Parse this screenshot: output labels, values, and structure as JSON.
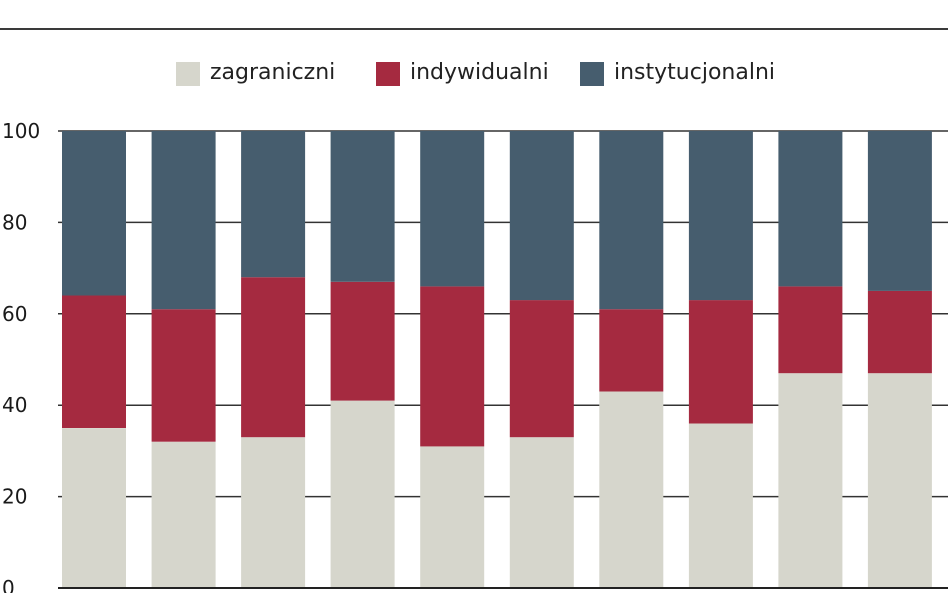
{
  "chart_data": {
    "type": "bar",
    "stacked": true,
    "title": "",
    "xlabel": "",
    "ylabel": "",
    "ylim": [
      0,
      100
    ],
    "yticks": [
      "0",
      "20",
      "40",
      "60",
      "80",
      "100"
    ],
    "categories": [
      "",
      "",
      "",
      "",
      "",
      "",
      "",
      "",
      "",
      ""
    ],
    "series": [
      {
        "name": "zagraniczni",
        "color": "#d6d6cc",
        "values": [
          35,
          32,
          33,
          41,
          31,
          33,
          43,
          36,
          47,
          47
        ]
      },
      {
        "name": "indywidualni",
        "color": "#a52a40",
        "values": [
          29,
          29,
          35,
          26,
          35,
          30,
          18,
          27,
          19,
          18
        ]
      },
      {
        "name": "instytucjonalni",
        "color": "#465d6e",
        "values": [
          36,
          39,
          32,
          33,
          34,
          37,
          39,
          37,
          34,
          35
        ]
      }
    ],
    "grid": true,
    "legend_position": "top"
  }
}
